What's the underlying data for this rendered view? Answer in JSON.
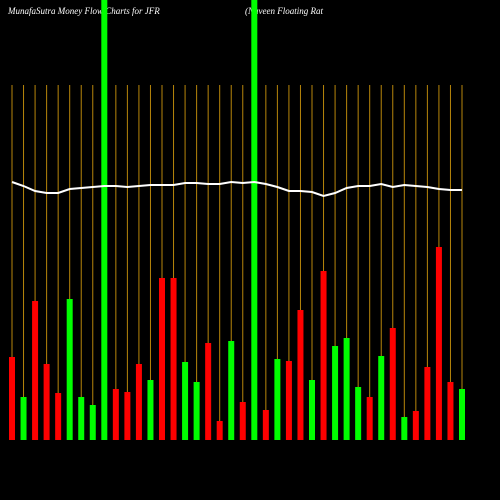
{
  "chart_data": {
    "type": "bar",
    "title": "MunafaSutra  Money Flow  Charts for JFR",
    "subtitle": "(Nuveen  Floating Rat",
    "categories": [
      null,
      null,
      null,
      null,
      null,
      null,
      null,
      null,
      null,
      null,
      null,
      null,
      null,
      null,
      null,
      null,
      null,
      null,
      null,
      null,
      null,
      null,
      null,
      null,
      null,
      null,
      null,
      null,
      null,
      null,
      null,
      null,
      null,
      null,
      null,
      null,
      null,
      null,
      null,
      null
    ],
    "series": [
      {
        "name": null,
        "values": [
          83,
          43,
          139,
          76,
          47,
          141,
          43,
          35,
          440,
          51,
          48,
          76,
          60,
          162,
          162,
          78,
          58,
          97,
          19,
          99,
          38,
          440,
          30,
          81,
          79,
          130,
          60,
          169,
          94,
          102,
          53,
          43,
          84,
          112,
          23,
          29,
          73,
          193,
          58,
          51
        ],
        "colors": [
          "#ff0000",
          "#00ff00",
          "#ff0000",
          "#ff0000",
          "#ff0000",
          "#00ff00",
          "#00ff00",
          "#00ff00",
          "#00ff00",
          "#ff0000",
          "#ff0000",
          "#ff0000",
          "#00ff00",
          "#ff0000",
          "#ff0000",
          "#00ff00",
          "#00ff00",
          "#ff0000",
          "#ff0000",
          "#00ff00",
          "#ff0000",
          "#00ff00",
          "#ff0000",
          "#00ff00",
          "#ff0000",
          "#ff0000",
          "#00ff00",
          "#ff0000",
          "#00ff00",
          "#00ff00",
          "#00ff00",
          "#ff0000",
          "#00ff00",
          "#ff0000",
          "#00ff00",
          "#ff0000",
          "#ff0000",
          "#ff0000",
          "#ff0000",
          "#00ff00"
        ]
      },
      {
        "name": null,
        "type": "line",
        "color": "#ffffff",
        "values": [
          258,
          254,
          249,
          247,
          247,
          251,
          252,
          253,
          254,
          254,
          253,
          254,
          255,
          255,
          255,
          257,
          257,
          256,
          256,
          258,
          257,
          258,
          256,
          253,
          249,
          249,
          248,
          244,
          247,
          252,
          254,
          254,
          256,
          253,
          255,
          254,
          253,
          251,
          250,
          250
        ]
      }
    ],
    "ylim": [
      0,
      440
    ],
    "grid": true,
    "grid_color": "#b8860b"
  }
}
